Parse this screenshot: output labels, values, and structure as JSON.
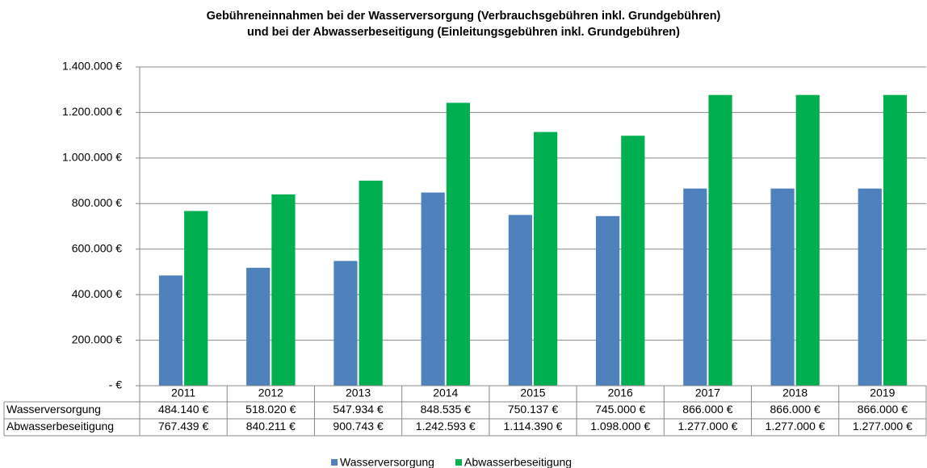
{
  "chart_data": {
    "type": "bar",
    "title": [
      "Gebühreneinnahmen bei der Wasserversorgung (Verbrauchsgebühren inkl. Grundgebühren)",
      "und bei der Abwasserbeseitigung (Einleitungsgebühren inkl. Grundgebühren)"
    ],
    "categories": [
      "2011",
      "2012",
      "2013",
      "2014",
      "2015",
      "2016",
      "2017",
      "2018",
      "2019"
    ],
    "series": [
      {
        "name": "Wasserversorgung",
        "color": "#4f81bd",
        "values": [
          484140,
          518020,
          547934,
          848535,
          750137,
          745000,
          866000,
          866000,
          866000
        ],
        "value_labels": [
          "484.140 €",
          "518.020 €",
          "547.934 €",
          "848.535 €",
          "750.137 €",
          "745.000 €",
          "866.000 €",
          "866.000 €",
          "866.000 €"
        ]
      },
      {
        "name": "Abwasserbeseitigung",
        "color": "#00b050",
        "values": [
          767439,
          840211,
          900743,
          1242593,
          1114390,
          1098000,
          1277000,
          1277000,
          1277000
        ],
        "value_labels": [
          "767.439 €",
          "840.211 €",
          "900.743 €",
          "1.242.593 €",
          "1.114.390 €",
          "1.098.000 €",
          "1.277.000 €",
          "1.277.000 €",
          "1.277.000 €"
        ]
      }
    ],
    "ylim": [
      0,
      1400000
    ],
    "yticks": [
      {
        "value": 0,
        "label": "-  €"
      },
      {
        "value": 200000,
        "label": "200.000 €"
      },
      {
        "value": 400000,
        "label": "400.000 €"
      },
      {
        "value": 600000,
        "label": "600.000 €"
      },
      {
        "value": 800000,
        "label": "800.000 €"
      },
      {
        "value": 1000000,
        "label": "1.000.000 €"
      },
      {
        "value": 1200000,
        "label": "1.200.000 €"
      },
      {
        "value": 1400000,
        "label": "1.400.000 €"
      }
    ],
    "grid": true,
    "legend": "bottom"
  }
}
